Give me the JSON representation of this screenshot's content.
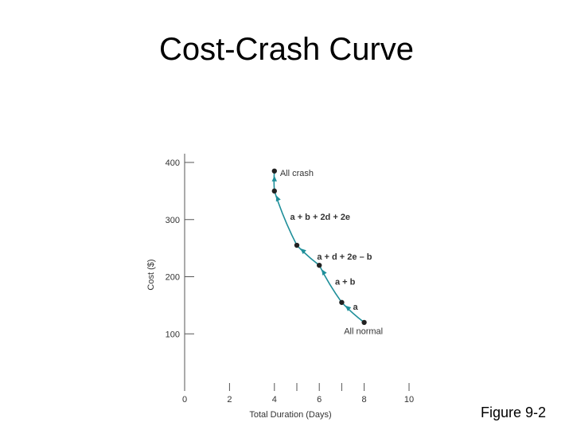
{
  "slide": {
    "title": "Cost-Crash Curve",
    "caption": "Figure 9-2"
  },
  "chart_data": {
    "type": "line",
    "xlabel": "Total Duration (Days)",
    "ylabel": "Cost ($)",
    "xlim": [
      0,
      10
    ],
    "ylim": [
      0,
      400
    ],
    "x_ticks": [
      0,
      2,
      4,
      6,
      8,
      10
    ],
    "y_ticks": [
      100,
      200,
      300,
      400
    ],
    "x_minor_ticks": [
      5,
      7
    ],
    "grid": false,
    "line_color": "#1f8f9a",
    "point_color": "#222222",
    "points": [
      {
        "x": 8,
        "y": 120
      },
      {
        "x": 7,
        "y": 155
      },
      {
        "x": 6,
        "y": 220
      },
      {
        "x": 5,
        "y": 255
      },
      {
        "x": 4,
        "y": 350
      },
      {
        "x": 4,
        "y": 385
      }
    ],
    "annotations": [
      {
        "text": "All crash",
        "x": 4.25,
        "y": 376,
        "bold": false
      },
      {
        "text": "a + b + 2d + 2e",
        "x": 4.7,
        "y": 300,
        "bold": true
      },
      {
        "text": "a + d + 2e – b",
        "x": 5.9,
        "y": 230,
        "bold": true
      },
      {
        "text": "a + b",
        "x": 6.7,
        "y": 186,
        "bold": true
      },
      {
        "text": "a",
        "x": 7.5,
        "y": 142,
        "bold": true
      },
      {
        "text": "All normal",
        "x": 7.1,
        "y": 100,
        "bold": false
      }
    ]
  }
}
